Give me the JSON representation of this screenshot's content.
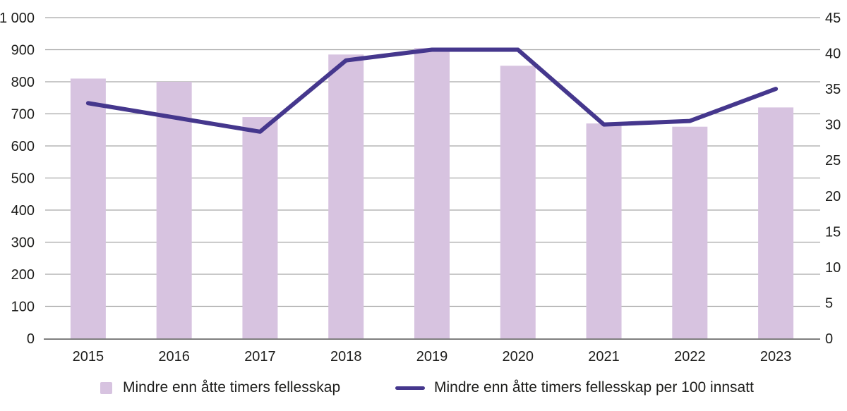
{
  "chart_data": {
    "type": "bar",
    "subtype": "combo-bar-line",
    "title": "",
    "categories": [
      "2015",
      "2016",
      "2017",
      "2018",
      "2019",
      "2020",
      "2021",
      "2022",
      "2023"
    ],
    "series": [
      {
        "name": "Mindre enn åtte timers fellesskap",
        "type": "bar",
        "axis": "left",
        "color": "#d7c3e0",
        "values": [
          810,
          800,
          690,
          885,
          905,
          850,
          670,
          660,
          720
        ]
      },
      {
        "name": "Mindre enn åtte timers fellesskap per 100 innsatt",
        "type": "line",
        "axis": "right",
        "color": "#45378d",
        "values": [
          33,
          31,
          29,
          39,
          40.5,
          40.5,
          30,
          30.5,
          35
        ]
      }
    ],
    "left_axis": {
      "min": 0,
      "max": 1000,
      "step": 100,
      "ticks": [
        {
          "value": 1000,
          "label": "1 000"
        },
        {
          "value": 900,
          "label": "900"
        },
        {
          "value": 800,
          "label": "800"
        },
        {
          "value": 700,
          "label": "700"
        },
        {
          "value": 600,
          "label": "600"
        },
        {
          "value": 500,
          "label": "500"
        },
        {
          "value": 400,
          "label": "400"
        },
        {
          "value": 300,
          "label": "300"
        },
        {
          "value": 200,
          "label": "200"
        },
        {
          "value": 100,
          "label": "100"
        },
        {
          "value": 0,
          "label": "0"
        }
      ]
    },
    "right_axis": {
      "min": 0,
      "max": 45,
      "step": 5,
      "ticks": [
        {
          "value": 45,
          "label": "45"
        },
        {
          "value": 40,
          "label": "40"
        },
        {
          "value": 35,
          "label": "35"
        },
        {
          "value": 30,
          "label": "30"
        },
        {
          "value": 25,
          "label": "25"
        },
        {
          "value": 20,
          "label": "20"
        },
        {
          "value": 15,
          "label": "15"
        },
        {
          "value": 10,
          "label": "10"
        },
        {
          "value": 5,
          "label": "5"
        },
        {
          "value": 0,
          "label": "0"
        }
      ]
    },
    "grid": "horizontal gridlines at left-axis 100-steps",
    "legend_position": "bottom"
  },
  "colors": {
    "bar": "#d7c3e0",
    "line": "#45378d",
    "gridline": "#a6a6a6",
    "axis_line": "#7f7f7f",
    "text": "#1d1d1b",
    "background": "#ffffff"
  }
}
